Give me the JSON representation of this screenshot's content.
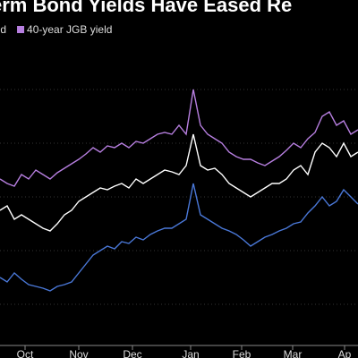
{
  "chart_data": {
    "type": "line",
    "title": "erm Bond Yields Have Eased Re",
    "x": [
      0,
      8,
      16,
      24,
      32,
      40,
      48,
      56,
      64,
      72,
      80,
      88,
      96,
      104,
      112,
      120,
      128,
      136,
      144,
      152,
      160,
      168,
      176,
      184,
      192,
      200,
      208,
      216,
      224,
      232,
      240,
      248,
      256,
      264,
      272,
      280,
      288,
      296,
      304,
      312,
      320,
      328,
      336,
      344,
      352,
      360,
      368,
      376,
      384,
      392,
      400
    ],
    "xlim": [
      0,
      400
    ],
    "xticks": [
      {
        "value": 28,
        "label": "Oct"
      },
      {
        "value": 88,
        "label": "Nov"
      },
      {
        "value": 148,
        "label": "Dec"
      },
      {
        "value": 213,
        "label": "Jan"
      },
      {
        "value": 270,
        "label": "Feb"
      },
      {
        "value": 327,
        "label": "Mar"
      },
      {
        "value": 385,
        "label": "Ap"
      }
    ],
    "ylim": [
      0,
      345
    ],
    "series": [
      {
        "color": "#4a78d8",
        "values": [
          75,
          70,
          80,
          73,
          67,
          65,
          63,
          60,
          65,
          67,
          70,
          80,
          90,
          100,
          105,
          110,
          107,
          115,
          113,
          120,
          117,
          123,
          127,
          130,
          130,
          135,
          140,
          180,
          145,
          140,
          135,
          130,
          127,
          123,
          117,
          110,
          115,
          120,
          123,
          127,
          130,
          135,
          137,
          147,
          155,
          165,
          155,
          160,
          173,
          165,
          157
        ]
      },
      {
        "name": "B yield",
        "color": "#ffffff",
        "values": [
          150,
          155,
          140,
          145,
          140,
          135,
          130,
          127,
          135,
          145,
          150,
          160,
          165,
          170,
          175,
          173,
          177,
          180,
          175,
          185,
          180,
          185,
          190,
          195,
          193,
          190,
          200,
          235,
          200,
          195,
          197,
          190,
          180,
          175,
          170,
          165,
          170,
          175,
          180,
          180,
          185,
          195,
          200,
          190,
          215,
          225,
          220,
          210,
          225,
          210,
          215
        ]
      },
      {
        "name": "40-year JGB yield",
        "color": "#b77fe0",
        "values": [
          185,
          180,
          177,
          190,
          185,
          195,
          190,
          185,
          192,
          197,
          202,
          207,
          213,
          220,
          215,
          222,
          220,
          225,
          220,
          227,
          225,
          230,
          235,
          237,
          235,
          245,
          235,
          285,
          245,
          235,
          230,
          225,
          215,
          210,
          207,
          207,
          203,
          200,
          205,
          210,
          217,
          225,
          220,
          230,
          237,
          255,
          260,
          245,
          250,
          235,
          240
        ]
      }
    ]
  }
}
